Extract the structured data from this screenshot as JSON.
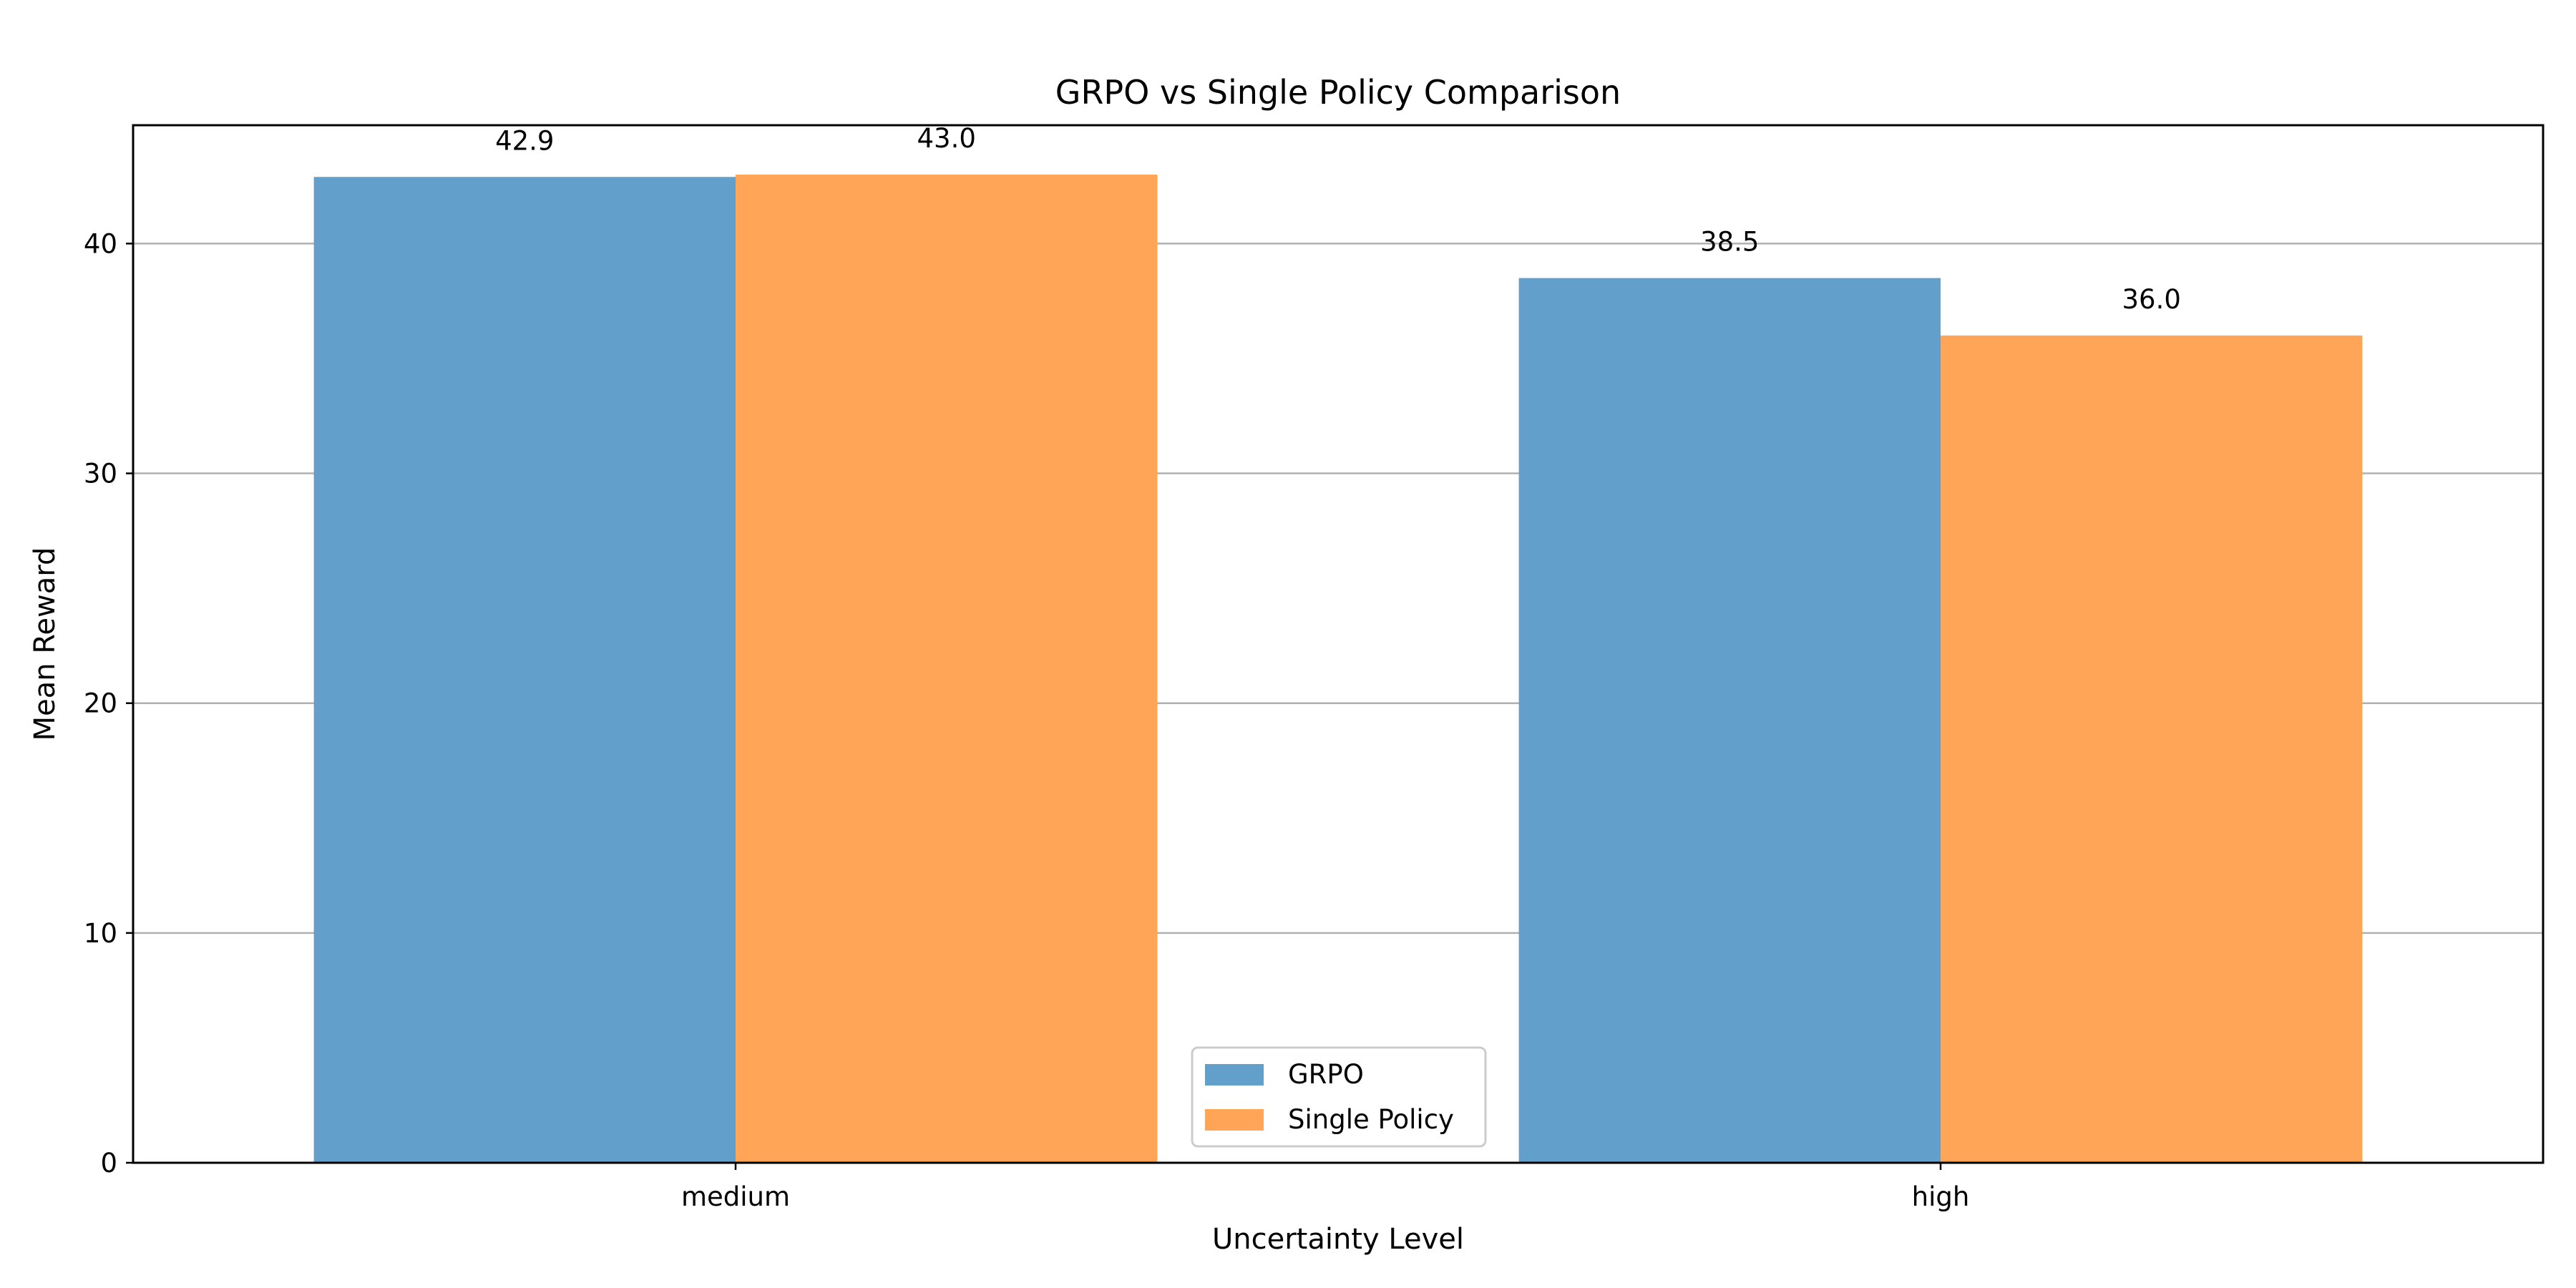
{
  "chart_data": {
    "type": "bar",
    "title": "GRPO vs Single Policy Comparison",
    "xlabel": "Uncertainty Level",
    "ylabel": "Mean Reward",
    "categories": [
      "medium",
      "high"
    ],
    "series": [
      {
        "name": "GRPO",
        "values": [
          42.9,
          38.5
        ],
        "value_labels": [
          "42.9",
          "38.5"
        ],
        "color": "#62a0cb"
      },
      {
        "name": "Single Policy",
        "values": [
          43.0,
          36.0
        ],
        "value_labels": [
          "43.0",
          "36.0"
        ],
        "color": "#fea557"
      }
    ],
    "ylim": [
      0,
      45.15
    ],
    "yticks": [
      0,
      10,
      20,
      30,
      40
    ],
    "ytick_labels": [
      "0",
      "10",
      "20",
      "30",
      "40"
    ],
    "grid": "y",
    "legend": "bottom-center"
  }
}
